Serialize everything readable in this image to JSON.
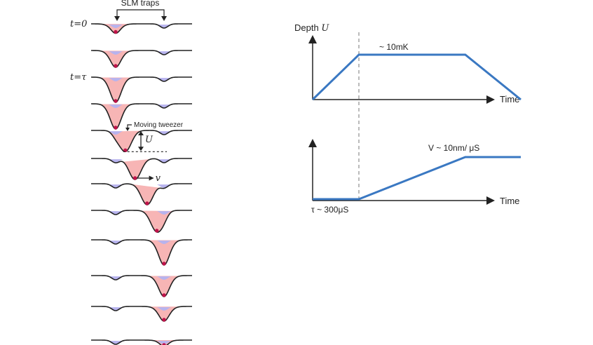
{
  "left_panel": {
    "slm_label": "SLM traps",
    "time_labels": [
      "t=0",
      "t=τ"
    ],
    "moving_tweezer_label": "Moving tweezer",
    "depth_symbol": "U",
    "velocity_symbol": "v",
    "colors": {
      "line": "#222222",
      "slm_trap": "#b7b3ee",
      "tweezer": "#f6a8a8",
      "atom": "#c0134a"
    },
    "stages": [
      {
        "tweezer_pos": 0.0,
        "depth": 0.25,
        "time_label": "t=0"
      },
      {
        "tweezer_pos": 0.0,
        "depth": 0.6
      },
      {
        "tweezer_pos": 0.0,
        "depth": 1.0,
        "time_label": "t=τ"
      },
      {
        "tweezer_pos": 0.0,
        "depth": 1.0
      },
      {
        "tweezer_pos": 0.2,
        "depth": 1.0,
        "annotated": true
      },
      {
        "tweezer_pos": 0.4,
        "depth": 1.0,
        "velocity_arrow": true
      },
      {
        "tweezer_pos": 0.65,
        "depth": 1.0
      },
      {
        "tweezer_pos": 0.85,
        "depth": 1.0
      },
      {
        "tweezer_pos": 1.0,
        "depth": 1.0
      },
      {
        "tweezer_pos": 1.0,
        "depth": 0.8
      },
      {
        "tweezer_pos": 1.0,
        "depth": 0.5
      },
      {
        "tweezer_pos": 1.0,
        "depth": 0.1
      }
    ]
  },
  "chart_data": [
    {
      "type": "line",
      "ylabel_text": "Depth ",
      "ylabel_symbol": "U",
      "xlabel": "Time",
      "annotation": "~ 10mK",
      "series": [
        {
          "x": [
            0,
            1,
            3.3,
            4.5
          ],
          "y": [
            0,
            1,
            1,
            0
          ]
        }
      ],
      "color": "#3a78c2"
    },
    {
      "type": "line",
      "ylabel": "",
      "xlabel": "Time",
      "annotation": "V ~ 10nm/ μS",
      "tau_label": "τ ~ 300μS",
      "series": [
        {
          "x": [
            0,
            1,
            3.3,
            4.5
          ],
          "y": [
            0,
            0,
            1,
            1
          ]
        }
      ],
      "color": "#3a78c2"
    }
  ]
}
